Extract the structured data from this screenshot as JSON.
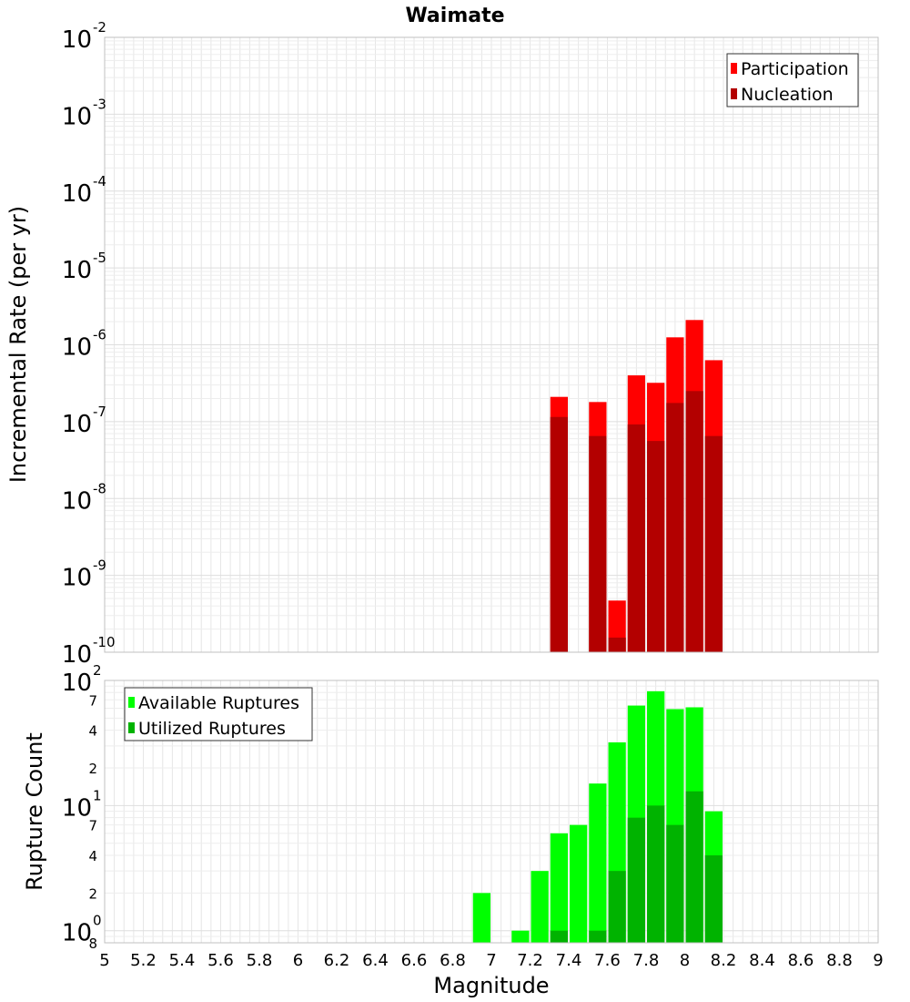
{
  "colors": {
    "participation": "#ff0000",
    "nucleation": "#b30000",
    "available": "#00ff00",
    "utilized": "#00b300",
    "grid": "#e6e6e6",
    "frame": "#c0c0c0"
  },
  "chart_data": {
    "type": "bar",
    "title": "Waimate",
    "xlabel": "Magnitude",
    "xlim": [
      5,
      9
    ],
    "x_ticks": [
      "5",
      "5.2",
      "5.4",
      "5.6",
      "5.8",
      "6",
      "6.2",
      "6.4",
      "6.6",
      "6.8",
      "7",
      "7.2",
      "7.4",
      "7.6",
      "7.8",
      "8",
      "8.2",
      "8.4",
      "8.6",
      "8.8",
      "9"
    ],
    "bin_width": 0.1,
    "panels": [
      {
        "id": "rate",
        "ylabel": "Incremental Rate (per yr)",
        "yscale": "log",
        "ylim": [
          1e-10,
          0.01
        ],
        "y_major_ticks": [
          {
            "base": "10",
            "exp": "-10"
          },
          {
            "base": "10",
            "exp": "-9"
          },
          {
            "base": "10",
            "exp": "-8"
          },
          {
            "base": "10",
            "exp": "-7"
          },
          {
            "base": "10",
            "exp": "-6"
          },
          {
            "base": "10",
            "exp": "-5"
          },
          {
            "base": "10",
            "exp": "-4"
          },
          {
            "base": "10",
            "exp": "-3"
          },
          {
            "base": "10",
            "exp": "-2"
          }
        ],
        "legend": [
          "Participation",
          "Nucleation"
        ],
        "legend_position": "top-right",
        "series": [
          {
            "name": "Participation",
            "x": [
              7.35,
              7.55,
              7.65,
              7.75,
              7.85,
              7.95,
              8.05,
              8.15
            ],
            "values": [
              2.1e-07,
              1.8e-07,
              4.7e-10,
              4e-07,
              3.2e-07,
              1.25e-06,
              2.1e-06,
              6.3e-07
            ]
          },
          {
            "name": "Nucleation",
            "x": [
              7.35,
              7.55,
              7.65,
              7.75,
              7.85,
              7.95,
              8.05,
              8.15
            ],
            "values": [
              1.15e-07,
              6.5e-08,
              1.55e-10,
              9.2e-08,
              5.6e-08,
              1.75e-07,
              2.5e-07,
              6.5e-08
            ]
          }
        ]
      },
      {
        "id": "count",
        "ylabel": "Rupture Count",
        "yscale": "log",
        "ylim": [
          0.8,
          100
        ],
        "y_major_ticks": [
          {
            "base": "10",
            "exp": "0"
          },
          {
            "base": "10",
            "exp": "1"
          },
          {
            "base": "10",
            "exp": "2"
          }
        ],
        "y_minor_ticks": [
          "8",
          "2",
          "4",
          "7",
          "2",
          "4",
          "7"
        ],
        "legend": [
          "Available Ruptures",
          "Utilized Ruptures"
        ],
        "legend_position": "top-left",
        "series": [
          {
            "name": "Available Ruptures",
            "x": [
              6.95,
              7.15,
              7.25,
              7.35,
              7.45,
              7.55,
              7.65,
              7.75,
              7.85,
              7.95,
              8.05,
              8.15
            ],
            "values": [
              2,
              1,
              3,
              6,
              7,
              15,
              32,
              63,
              82,
              59,
              61,
              9
            ]
          },
          {
            "name": "Utilized Ruptures",
            "x": [
              7.35,
              7.55,
              7.65,
              7.75,
              7.85,
              7.95,
              8.05,
              8.15
            ],
            "values": [
              1,
              1,
              3,
              8,
              10,
              7,
              13,
              4
            ]
          }
        ]
      }
    ]
  }
}
